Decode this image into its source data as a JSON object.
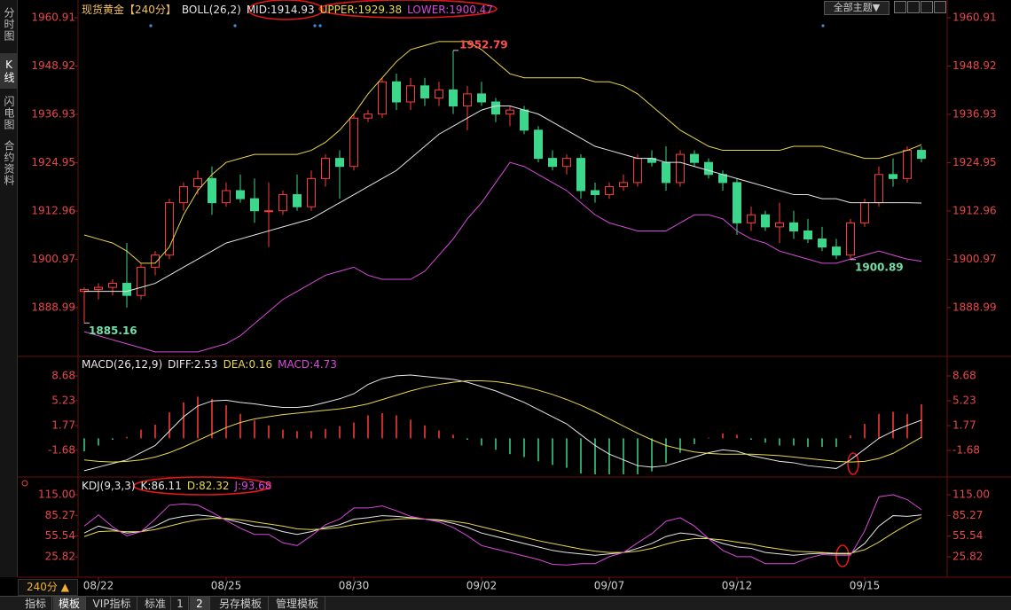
{
  "ui": {
    "side_tabs": [
      "分时图",
      "K线图",
      "闪电图",
      "合约资料"
    ],
    "theme_button": "全部主题▼",
    "period": "240分 ▲",
    "bottom_tabs": [
      "指标",
      "模板",
      "VIP指标",
      "标准",
      "1",
      "2",
      "另存模板",
      "管理模板"
    ]
  },
  "chart_data": [
    {
      "type": "candlestick",
      "title": "现货黄金【240分】",
      "indicator": "BOLL(26,2)",
      "x": [
        null,
        "08/22",
        null,
        null,
        null,
        null,
        null,
        null,
        null,
        null,
        "08/25",
        null,
        null,
        null,
        null,
        null,
        null,
        null,
        null,
        "08/30",
        null,
        null,
        null,
        null,
        null,
        null,
        null,
        null,
        "09/02",
        null,
        null,
        null,
        null,
        null,
        null,
        null,
        null,
        "09/07",
        null,
        null,
        null,
        null,
        null,
        null,
        null,
        null,
        "09/12",
        null,
        null,
        null,
        null,
        null,
        null,
        null,
        null,
        "09/15",
        null,
        null,
        null,
        null
      ],
      "open": [
        1893,
        1893.5,
        1894,
        1895,
        1892,
        1899,
        1902,
        1915,
        1919,
        1921,
        1915,
        1918,
        1916,
        1913,
        1913,
        1917,
        1914,
        1921,
        1926,
        1924,
        1936,
        1937,
        1945,
        1940,
        1944,
        1941,
        1943,
        1939,
        1942,
        1940,
        1937,
        1938,
        1933,
        1926,
        1924,
        1926,
        1918,
        1917,
        1919,
        1920,
        1926,
        1925,
        1920,
        1927,
        1925,
        1922,
        1920,
        1910,
        1912,
        1909,
        1910,
        1908,
        1906,
        1904,
        1902,
        1910,
        1915,
        1922,
        1921,
        1928
      ],
      "high": [
        1894,
        1895,
        1896,
        1905,
        1900,
        1903,
        1916,
        1920,
        1923,
        1924,
        1920,
        1922,
        1921,
        1920,
        1918,
        1922,
        1923,
        1927,
        1928,
        1937,
        1938,
        1946,
        1947,
        1946,
        1946,
        1945,
        1952.79,
        1944,
        1945,
        1941,
        1939,
        1939,
        1934,
        1928,
        1927,
        1927,
        1920,
        1920,
        1922,
        1927,
        1928,
        1929,
        1928,
        1928,
        1926,
        1923,
        1921,
        1914,
        1913,
        1915,
        1913,
        1911,
        1909,
        1906,
        1911,
        1916,
        1924,
        1926,
        1929,
        1929
      ],
      "low": [
        1885.16,
        1891,
        1892,
        1889,
        1891,
        1897,
        1901,
        1913,
        1917,
        1912,
        1914,
        1915,
        1910,
        1904,
        1912,
        1913,
        1913,
        1919,
        1916,
        1923,
        1935,
        1936,
        1938,
        1938,
        1939,
        1939,
        1937,
        1933,
        1939,
        1935,
        1934,
        1932,
        1925,
        1923,
        1922,
        1916,
        1915,
        1916,
        1918,
        1919,
        1924,
        1918,
        1919,
        1924,
        1921,
        1918,
        1907,
        1908,
        1908,
        1905,
        1906,
        1905,
        1903,
        1901,
        1900.89,
        1909,
        1914,
        1919,
        1920,
        1925
      ],
      "close": [
        1893.5,
        1894,
        1895,
        1892,
        1899,
        1902,
        1915,
        1919,
        1921,
        1915,
        1918,
        1916,
        1913,
        1913,
        1917,
        1914,
        1921,
        1926,
        1924,
        1936,
        1937,
        1945,
        1940,
        1944,
        1941,
        1943,
        1939,
        1942,
        1940,
        1937,
        1938,
        1933,
        1926,
        1924,
        1926,
        1918,
        1917,
        1919,
        1920,
        1926,
        1925,
        1920,
        1927,
        1925,
        1922,
        1920,
        1910,
        1912,
        1909,
        1910,
        1908,
        1906,
        1904,
        1902,
        1910,
        1915,
        1922,
        1921,
        1928,
        1926
      ],
      "up_color": "#ff3c3c",
      "down_color": "#3cd68c",
      "series": [
        {
          "name": "MID",
          "color": "#e6e6e6",
          "values": [
            1893,
            1893,
            1893,
            1893,
            1894,
            1895,
            1897,
            1899,
            1901,
            1903,
            1905,
            1906,
            1907,
            1908,
            1909,
            1910,
            1911,
            1913,
            1915,
            1917,
            1919,
            1921,
            1923,
            1926,
            1929,
            1932,
            1934,
            1936,
            1938,
            1939,
            1939,
            1938,
            1937,
            1935,
            1933,
            1931,
            1929,
            1928,
            1927,
            1926,
            1926,
            1925,
            1925,
            1924,
            1923,
            1922,
            1921,
            1920,
            1919,
            1918,
            1917,
            1917,
            1916,
            1916,
            1915,
            1915,
            1915,
            1915,
            1915,
            1914.93
          ]
        },
        {
          "name": "UPPER",
          "color": "#e8d84a",
          "values": [
            1907,
            1906,
            1905,
            1903,
            1900,
            1900,
            1904,
            1912,
            1918,
            1922,
            1925,
            1926,
            1927,
            1927,
            1927,
            1927,
            1928,
            1930,
            1933,
            1937,
            1942,
            1946,
            1950,
            1953,
            1954,
            1955,
            1955,
            1955,
            1953,
            1950,
            1947,
            1946,
            1946,
            1946,
            1946,
            1946,
            1945,
            1945,
            1944,
            1942,
            1939,
            1936,
            1933,
            1931,
            1929,
            1928,
            1928,
            1928,
            1928,
            1928,
            1929,
            1929,
            1929,
            1928,
            1927,
            1926,
            1926,
            1927,
            1928,
            1929.38
          ]
        },
        {
          "name": "LOWER",
          "color": "#d94ad9",
          "values": [
            1883,
            1882,
            1881,
            1880,
            1879,
            1878,
            1878,
            1878,
            1878,
            1879,
            1880,
            1882,
            1885,
            1888,
            1891,
            1893,
            1895,
            1897,
            1898,
            1899,
            1897,
            1896,
            1896,
            1896,
            1898,
            1902,
            1906,
            1911,
            1915,
            1920,
            1925,
            1924,
            1922,
            1920,
            1918,
            1915,
            1912,
            1910,
            1909,
            1908,
            1908,
            1908,
            1910,
            1912,
            1912,
            1911,
            1908,
            1906,
            1905,
            1903,
            1902,
            1901,
            1900,
            1900,
            1901,
            1902,
            1903,
            1902,
            1901,
            1900.47
          ]
        }
      ],
      "ylim": [
        1877.3,
        1963.1
      ],
      "yticks": [
        1960.91,
        1948.92,
        1936.93,
        1924.95,
        1912.96,
        1900.97,
        1888.99
      ]
    },
    {
      "type": "macd",
      "title": "MACD(26,12,9)",
      "series": [
        {
          "name": "DIFF",
          "type": "line",
          "color": "#e6e6e6",
          "values": [
            -4.5,
            -4,
            -3.5,
            -3,
            -2,
            -1,
            1,
            3,
            4.5,
            5.2,
            5.3,
            5,
            4.8,
            4.5,
            4.3,
            4.3,
            4.5,
            5,
            5.5,
            6.2,
            7.5,
            8.3,
            8.7,
            8.8,
            8.6,
            8.4,
            8.2,
            7.8,
            7.2,
            6.6,
            5.8,
            5,
            4,
            3,
            2,
            0.5,
            -1,
            -2.2,
            -3,
            -3.8,
            -4,
            -3.8,
            -3.2,
            -2.6,
            -2,
            -1.6,
            -1.8,
            -2.4,
            -2.8,
            -3.2,
            -3.4,
            -3.8,
            -4,
            -4.2,
            -3,
            -1.5,
            0,
            1,
            1.8,
            2.53
          ]
        },
        {
          "name": "DEA",
          "type": "line",
          "color": "#e8d84a",
          "values": [
            -3,
            -3.2,
            -3.3,
            -3.2,
            -3,
            -2.6,
            -2,
            -1.2,
            -0.3,
            0.6,
            1.5,
            2.2,
            2.7,
            3,
            3.3,
            3.5,
            3.7,
            3.9,
            4.1,
            4.4,
            4.8,
            5.4,
            6,
            6.6,
            7.1,
            7.5,
            7.8,
            8,
            8,
            7.9,
            7.6,
            7.2,
            6.7,
            6.1,
            5.4,
            4.6,
            3.7,
            2.7,
            1.7,
            0.7,
            -0.2,
            -1,
            -1.5,
            -1.9,
            -2.1,
            -2.2,
            -2.2,
            -2.2,
            -2.3,
            -2.4,
            -2.6,
            -2.8,
            -3,
            -3.2,
            -3.3,
            -3.2,
            -2.8,
            -2.1,
            -1,
            0.16
          ]
        },
        {
          "name": "MACD",
          "type": "bar",
          "color": "#d94ad9",
          "positive_color": "#ff3c3c",
          "negative_color": "#3cd68c",
          "values": [
            -1.8,
            -1,
            -0.2,
            0.2,
            1.2,
            1.9,
            3.6,
            5,
            5.8,
            5.5,
            4.6,
            3.4,
            2.5,
            1.8,
            1.2,
            1,
            1,
            1.3,
            1.7,
            2.2,
            3.2,
            3.5,
            3.2,
            2.6,
            1.8,
            1.1,
            0.5,
            -0.2,
            -1,
            -1.6,
            -2.2,
            -2.6,
            -3.2,
            -3.7,
            -4.1,
            -4.9,
            -5.6,
            -5.9,
            -5.6,
            -5.4,
            -4.6,
            -3.4,
            -2,
            -0.8,
            0.1,
            0.7,
            0.5,
            -0.2,
            -0.6,
            -1,
            -1,
            -1.2,
            -1.2,
            -1.2,
            0.4,
            2,
            3.4,
            3.7,
            3.4,
            4.73
          ]
        }
      ],
      "ylim": [
        -5.01,
        9.42
      ],
      "yticks": [
        8.68,
        5.23,
        1.77,
        -1.68
      ]
    },
    {
      "type": "line",
      "title": "KDJ(9,3,3)",
      "series": [
        {
          "name": "K",
          "color": "#e6e6e6",
          "values": [
            60,
            70,
            65,
            60,
            62,
            70,
            80,
            84,
            86,
            84,
            80,
            75,
            70,
            68,
            62,
            58,
            62,
            68,
            72,
            80,
            82,
            85,
            84,
            82,
            80,
            78,
            74,
            68,
            60,
            55,
            50,
            45,
            40,
            35,
            32,
            30,
            28,
            30,
            32,
            38,
            45,
            55,
            60,
            58,
            52,
            45,
            40,
            38,
            32,
            30,
            28,
            30,
            31,
            30,
            30,
            45,
            70,
            85,
            84,
            86.11
          ]
        },
        {
          "name": "D",
          "color": "#e8d84a",
          "values": [
            55,
            62,
            63,
            62,
            62,
            65,
            70,
            75,
            79,
            81,
            81,
            79,
            76,
            73,
            70,
            66,
            65,
            66,
            68,
            72,
            75,
            78,
            80,
            81,
            80,
            79,
            77,
            74,
            69,
            64,
            59,
            54,
            49,
            45,
            41,
            37,
            34,
            32,
            32,
            34,
            38,
            44,
            49,
            52,
            52,
            50,
            47,
            44,
            40,
            37,
            34,
            33,
            32,
            31,
            31,
            36,
            47,
            60,
            72,
            82.32
          ]
        },
        {
          "name": "J",
          "color": "#d94ad9",
          "values": [
            70,
            86,
            69,
            56,
            62,
            80,
            100,
            102,
            100,
            90,
            78,
            67,
            58,
            58,
            46,
            42,
            56,
            72,
            80,
            96,
            96,
            99,
            92,
            84,
            80,
            76,
            68,
            56,
            42,
            37,
            32,
            27,
            22,
            15,
            14,
            16,
            16,
            26,
            32,
            46,
            59,
            77,
            82,
            70,
            52,
            35,
            26,
            26,
            16,
            16,
            16,
            24,
            29,
            28,
            28,
            63,
            112,
            115,
            108,
            93.68
          ]
        }
      ],
      "ylim": [
        -2.2,
        121.4
      ],
      "yticks": [
        {
          "value": 115,
          "label": "115.00"
        },
        85.27,
        55.54,
        25.82
      ]
    }
  ]
}
